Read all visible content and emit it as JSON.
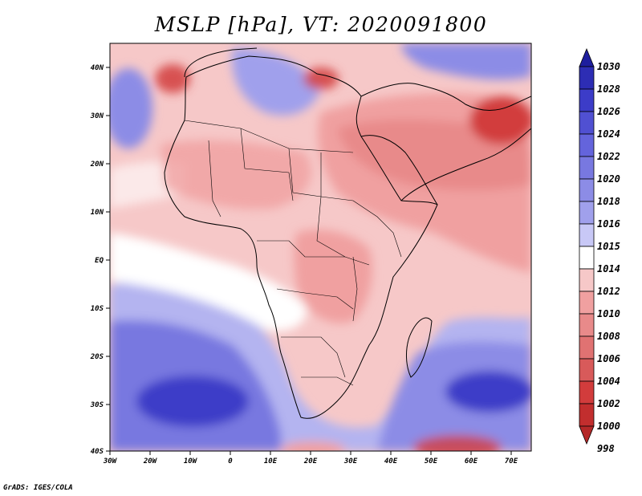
{
  "title": "MSLP [hPa], VT: 2020091800",
  "footer": "GrADS: IGES/COLA",
  "map": {
    "variable": "Mean sea level pressure",
    "units": "hPa",
    "valid_time": "2020091800",
    "lon_range": [
      -30,
      75
    ],
    "lat_range": [
      -40,
      45
    ],
    "x_ticks": [
      "30W",
      "20W",
      "10W",
      "0",
      "10E",
      "20E",
      "30E",
      "40E",
      "50E",
      "60E",
      "70E"
    ],
    "y_ticks": [
      "40N",
      "30N",
      "20N",
      "10N",
      "EQ",
      "10S",
      "20S",
      "30S",
      "40S"
    ],
    "colors": {
      "background_normal": "#f6c8c8",
      "high_strong": "#3c3cc8",
      "high_medium": "#7878e0",
      "high_light": "#b4b4f0",
      "near_normal": "#ffffff",
      "low_light": "#f0a0a0",
      "low_medium": "#e07272",
      "low_strong": "#d23c3c",
      "low_extreme": "#b42828"
    }
  },
  "colorbar": {
    "labels": [
      "1030",
      "1028",
      "1026",
      "1024",
      "1022",
      "1020",
      "1018",
      "1016",
      "1015",
      "1014",
      "1012",
      "1010",
      "1008",
      "1006",
      "1004",
      "1002",
      "1000",
      "998"
    ],
    "colors": [
      "#1e1e9e",
      "#2d2db4",
      "#3c3cc8",
      "#5050d2",
      "#6464dc",
      "#7878e0",
      "#8c8ce6",
      "#a0a0ec",
      "#c8c8f6",
      "#ffffff",
      "#f6c8c8",
      "#f0a0a0",
      "#e88a8a",
      "#e07272",
      "#d85a5a",
      "#d23c3c",
      "#c22e2e",
      "#b42828"
    ]
  }
}
